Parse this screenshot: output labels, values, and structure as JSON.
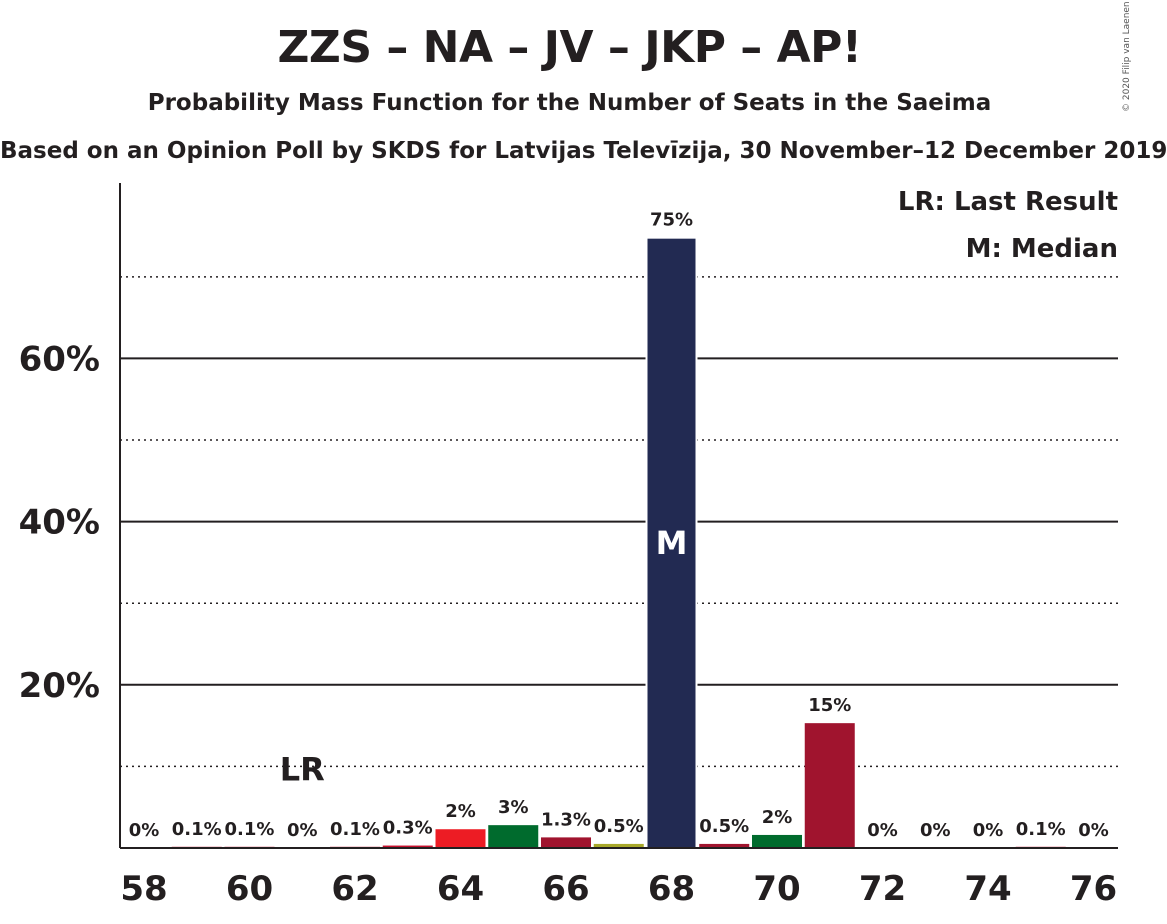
{
  "title": "ZZS – NA – JV – JKP – AP!",
  "subtitle": "Probability Mass Function for the Number of Seats in the Saeima",
  "subtitle2": "Based on an Opinion Poll by SKDS for Latvijas Televīzija, 30 November–12 December 2019",
  "copyright": "© 2020 Filip van Laenen",
  "legend": {
    "last_result": "LR: Last Result",
    "median": "M: Median"
  },
  "chart_data": {
    "type": "bar",
    "x": [
      58,
      59,
      60,
      61,
      62,
      63,
      64,
      65,
      66,
      67,
      68,
      69,
      70,
      71,
      72,
      73,
      74,
      75,
      76
    ],
    "values": [
      0,
      0.1,
      0.1,
      0,
      0.1,
      0.3,
      2.3,
      2.8,
      1.3,
      0.5,
      74.8,
      0.5,
      1.6,
      15.3,
      0,
      0,
      0,
      0.1,
      0
    ],
    "value_labels": [
      "0%",
      "0.1%",
      "0.1%",
      "0%",
      "0.1%",
      "0.3%",
      "2%",
      "3%",
      "1.3%",
      "0.5%",
      "75%",
      "0.5%",
      "2%",
      "15%",
      "0%",
      "0%",
      "0%",
      "0.1%",
      "0%"
    ],
    "colors": [
      "#c8102e",
      "#c8102e",
      "#c8102e",
      "#c8102e",
      "#c8102e",
      "#c8102e",
      "#ed1c24",
      "#006b2d",
      "#a0142e",
      "#a8a82a",
      "#222a52",
      "#a0142e",
      "#006b2d",
      "#a0142e",
      "#c8102e",
      "#c8102e",
      "#c8102e",
      "#c8102e",
      "#c8102e"
    ],
    "x_tick_labels": [
      "58",
      "60",
      "62",
      "64",
      "66",
      "68",
      "70",
      "72",
      "74",
      "76"
    ],
    "y_tick_labels": [
      "20%",
      "40%",
      "60%"
    ],
    "y_ticks": [
      20,
      40,
      60
    ],
    "y_minor_ticks": [
      10,
      30,
      50,
      70
    ],
    "ylim": [
      0,
      81.5
    ],
    "last_result_seat": 61,
    "last_result_label": "LR",
    "median_seat": 68,
    "median_label": "M",
    "legend_position": "top-right"
  }
}
